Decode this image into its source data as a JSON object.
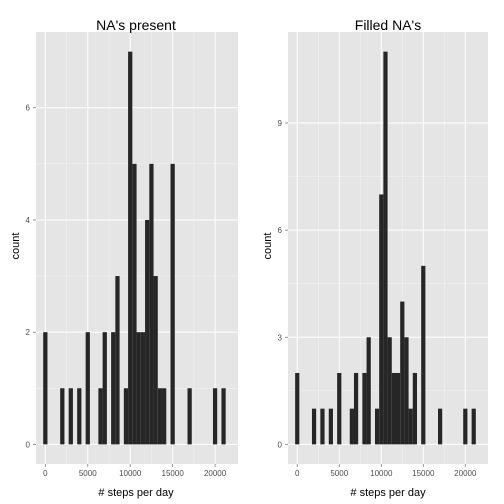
{
  "chart_data": [
    {
      "type": "bar",
      "title": "NA's present",
      "xlabel": "# steps per day",
      "ylabel": "count",
      "binwidth": 500,
      "x_ticks": [
        0,
        5000,
        10000,
        15000,
        20000
      ],
      "x_tick_labels": [
        "0",
        "5000",
        "10000",
        "15000",
        "20000"
      ],
      "y_ticks": [
        0,
        2,
        4,
        6
      ],
      "y_tick_labels": [
        "0",
        "2",
        "4",
        "6"
      ],
      "xlim": [
        -1100,
        22700
      ],
      "ylim": [
        -0.35,
        7.35
      ],
      "bins": [
        {
          "x": 0,
          "count": 2
        },
        {
          "x": 2000,
          "count": 1
        },
        {
          "x": 3000,
          "count": 1
        },
        {
          "x": 4000,
          "count": 1
        },
        {
          "x": 5000,
          "count": 2
        },
        {
          "x": 6500,
          "count": 1
        },
        {
          "x": 7000,
          "count": 2
        },
        {
          "x": 8000,
          "count": 2
        },
        {
          "x": 8500,
          "count": 3
        },
        {
          "x": 9500,
          "count": 1
        },
        {
          "x": 10000,
          "count": 7
        },
        {
          "x": 10500,
          "count": 5
        },
        {
          "x": 11000,
          "count": 2
        },
        {
          "x": 11500,
          "count": 2
        },
        {
          "x": 12000,
          "count": 4
        },
        {
          "x": 12500,
          "count": 5
        },
        {
          "x": 13000,
          "count": 3
        },
        {
          "x": 13500,
          "count": 1
        },
        {
          "x": 14000,
          "count": 1
        },
        {
          "x": 15000,
          "count": 5
        },
        {
          "x": 17000,
          "count": 1
        },
        {
          "x": 20000,
          "count": 1
        },
        {
          "x": 21000,
          "count": 1
        }
      ]
    },
    {
      "type": "bar",
      "title": "Filled NA's",
      "xlabel": "# steps per day",
      "ylabel": "count",
      "binwidth": 500,
      "x_ticks": [
        0,
        5000,
        10000,
        15000,
        20000
      ],
      "x_tick_labels": [
        "0",
        "5000",
        "10000",
        "15000",
        "20000"
      ],
      "y_ticks": [
        0,
        3,
        6,
        9
      ],
      "y_tick_labels": [
        "0",
        "3",
        "6",
        "9"
      ],
      "xlim": [
        -1100,
        22700
      ],
      "ylim": [
        -0.55,
        11.55
      ],
      "bins": [
        {
          "x": 0,
          "count": 2
        },
        {
          "x": 2000,
          "count": 1
        },
        {
          "x": 3000,
          "count": 1
        },
        {
          "x": 4000,
          "count": 1
        },
        {
          "x": 5000,
          "count": 2
        },
        {
          "x": 6500,
          "count": 1
        },
        {
          "x": 7000,
          "count": 2
        },
        {
          "x": 8000,
          "count": 2
        },
        {
          "x": 8500,
          "count": 3
        },
        {
          "x": 9500,
          "count": 1
        },
        {
          "x": 10000,
          "count": 7
        },
        {
          "x": 10500,
          "count": 11
        },
        {
          "x": 11000,
          "count": 3
        },
        {
          "x": 11500,
          "count": 2
        },
        {
          "x": 12000,
          "count": 2
        },
        {
          "x": 12500,
          "count": 4
        },
        {
          "x": 13000,
          "count": 3
        },
        {
          "x": 13500,
          "count": 1
        },
        {
          "x": 14000,
          "count": 2
        },
        {
          "x": 15000,
          "count": 5
        },
        {
          "x": 17000,
          "count": 1
        },
        {
          "x": 20000,
          "count": 1
        },
        {
          "x": 21000,
          "count": 1
        }
      ]
    }
  ]
}
